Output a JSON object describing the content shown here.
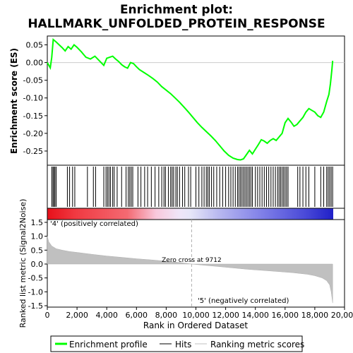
{
  "chart_data": {
    "type": "line",
    "title": "Enrichment plot:",
    "subtitle": "HALLMARK_UNFOLDED_PROTEIN_RESPONSE",
    "xlabel": "Rank in Ordered Dataset",
    "ylabel_top": "Enrichment score (ES)",
    "ylabel_bottom": "Ranked list metric (Signal2Noise)",
    "xlim": [
      0,
      20000
    ],
    "es_ylim": [
      -0.29,
      0.075
    ],
    "metric_ylim": [
      -1.55,
      1.6
    ],
    "x_ticks": [
      0,
      2000,
      4000,
      6000,
      8000,
      10000,
      12000,
      14000,
      16000,
      18000,
      20000
    ],
    "x_tick_labels": [
      "0",
      "2,000",
      "4,000",
      "6,000",
      "8,000",
      "10,000",
      "12,000",
      "14,000",
      "16,000",
      "18,000",
      "20,000"
    ],
    "es_ticks": [
      0.05,
      0.0,
      -0.05,
      -0.1,
      -0.15,
      -0.2,
      -0.25
    ],
    "es_tick_labels": [
      "0.05",
      "0.00",
      "-0.05",
      "-0.10",
      "-0.15",
      "-0.20",
      "-0.25"
    ],
    "metric_ticks": [
      1.5,
      1.0,
      0.5,
      0.0,
      -0.5,
      -1.0,
      -1.5
    ],
    "metric_tick_labels": [
      "1.5",
      "1.0",
      "0.5",
      "0.0",
      "-0.5",
      "-1.0",
      "-1.5"
    ],
    "series": [
      {
        "name": "Enrichment profile",
        "color": "#00ff00",
        "x": [
          0,
          200,
          300,
          400,
          600,
          800,
          1000,
          1200,
          1400,
          1600,
          1800,
          2000,
          2300,
          2600,
          2900,
          3200,
          3500,
          3800,
          4000,
          4200,
          4400,
          4600,
          4800,
          5000,
          5200,
          5400,
          5600,
          5800,
          6000,
          6200,
          6500,
          6800,
          7100,
          7400,
          7700,
          8000,
          8300,
          8600,
          8900,
          9200,
          9500,
          9800,
          10100,
          10400,
          10700,
          11000,
          11300,
          11600,
          11900,
          12200,
          12500,
          12800,
          13000,
          13200,
          13400,
          13600,
          13800,
          14000,
          14200,
          14400,
          14600,
          14800,
          15000,
          15200,
          15400,
          15600,
          15800,
          16000,
          16200,
          16400,
          16600,
          16800,
          17000,
          17200,
          17400,
          17600,
          17800,
          18000,
          18200,
          18400,
          18600,
          18800,
          18950,
          19050,
          19150,
          19200
        ],
        "y": [
          0.0,
          -0.015,
          0.015,
          0.065,
          0.058,
          0.05,
          0.042,
          0.033,
          0.045,
          0.038,
          0.05,
          0.043,
          0.03,
          0.015,
          0.01,
          0.018,
          0.005,
          -0.008,
          0.012,
          0.015,
          0.018,
          0.01,
          0.003,
          -0.006,
          -0.012,
          -0.016,
          0.0,
          -0.003,
          -0.012,
          -0.02,
          -0.028,
          -0.036,
          -0.045,
          -0.055,
          -0.068,
          -0.078,
          -0.088,
          -0.1,
          -0.112,
          -0.126,
          -0.14,
          -0.155,
          -0.17,
          -0.183,
          -0.195,
          -0.207,
          -0.22,
          -0.235,
          -0.25,
          -0.262,
          -0.27,
          -0.274,
          -0.275,
          -0.272,
          -0.26,
          -0.248,
          -0.258,
          -0.245,
          -0.232,
          -0.218,
          -0.222,
          -0.228,
          -0.22,
          -0.215,
          -0.22,
          -0.21,
          -0.2,
          -0.17,
          -0.158,
          -0.168,
          -0.18,
          -0.175,
          -0.165,
          -0.155,
          -0.14,
          -0.13,
          -0.135,
          -0.14,
          -0.15,
          -0.155,
          -0.14,
          -0.11,
          -0.09,
          -0.06,
          -0.02,
          0.005
        ]
      }
    ],
    "hits": [
      300,
      380,
      450,
      520,
      600,
      1350,
      1500,
      1700,
      1850,
      2700,
      3100,
      3250,
      3800,
      3950,
      4050,
      4150,
      4250,
      4400,
      4500,
      4700,
      5000,
      5300,
      5450,
      5550,
      5650,
      5750,
      6100,
      6300,
      6550,
      6750,
      7000,
      7250,
      7500,
      7700,
      7850,
      7950,
      8150,
      8300,
      8400,
      8500,
      8650,
      8750,
      8900,
      9100,
      9250,
      9500,
      9650,
      10000,
      10200,
      10400,
      10550,
      10700,
      10800,
      10900,
      11050,
      11200,
      11400,
      11600,
      11800,
      12000,
      12200,
      12350,
      12500,
      12650,
      12800,
      12900,
      13000,
      13100,
      13200,
      13300,
      13400,
      13500,
      13600,
      13700,
      13800,
      14000,
      14150,
      14300,
      14450,
      14600,
      14750,
      14900,
      15050,
      15200,
      15350,
      15500,
      15600,
      15700,
      15800,
      15900,
      16000,
      16100,
      16200,
      16850,
      17000,
      17200,
      17400,
      17600,
      18000,
      18400,
      18600,
      18800,
      18900,
      19000,
      19100,
      19200
    ],
    "metric_profile": {
      "x": [
        0,
        100,
        300,
        600,
        1000,
        1500,
        2000,
        3000,
        4000,
        5000,
        6000,
        7000,
        8000,
        9000,
        9712,
        10500,
        11500,
        12500,
        13500,
        14500,
        15500,
        16500,
        17500,
        18000,
        18500,
        18800,
        19000,
        19100,
        19200
      ],
      "y": [
        1.0,
        0.8,
        0.65,
        0.55,
        0.5,
        0.45,
        0.42,
        0.35,
        0.29,
        0.24,
        0.19,
        0.15,
        0.1,
        0.05,
        0.0,
        -0.04,
        -0.09,
        -0.14,
        -0.19,
        -0.23,
        -0.27,
        -0.31,
        -0.37,
        -0.42,
        -0.5,
        -0.6,
        -0.75,
        -1.0,
        -1.4
      ]
    },
    "zero_cross_rank": 9712,
    "zero_cross_label": "Zero cross at 9712",
    "positive_label": "'4' (positively correlated)",
    "negative_label": "'5' (negatively correlated)",
    "n_total": 19200,
    "legend": [
      {
        "label": "Enrichment profile",
        "color": "#00ff00"
      },
      {
        "label": "Hits",
        "color": "#000000"
      },
      {
        "label": "Ranking metric scores",
        "color": "#c0c0c0"
      }
    ],
    "legend_position": "bottom",
    "grid": false
  }
}
